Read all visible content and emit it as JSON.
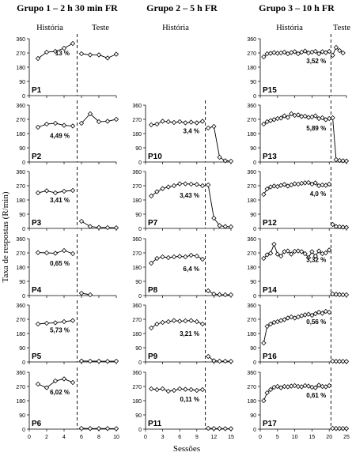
{
  "figure": {
    "group_titles": [
      "Grupo 1 – 2 h 30 min FR",
      "Grupo 2 – 5 h FR",
      "Grupo 3 – 10 h FR"
    ],
    "phase_labels": {
      "history": "História",
      "test": "Teste"
    },
    "ylabel": "Taxa de respostas (R/min)",
    "xlabel": "Sessões"
  },
  "chart_data": {
    "type": "line",
    "ylim": [
      0,
      360
    ],
    "yticks": [
      0,
      90,
      180,
      270,
      360
    ],
    "marker": "open-diamond",
    "groups": [
      {
        "title": "Grupo 1 – 2 h 30 min FR",
        "xlim": [
          0,
          10
        ],
        "xticks": [
          0,
          2,
          4,
          6,
          8,
          10
        ],
        "phase_boundary": 5.5,
        "panels": [
          {
            "name": "P1",
            "percent": "13 %",
            "history": {
              "x": [
                1,
                2,
                3,
                4,
                5
              ],
              "y": [
                235,
                275,
                280,
                300,
                330
              ]
            },
            "test": {
              "x": [
                6,
                7,
                8,
                9,
                10
              ],
              "y": [
                265,
                258,
                258,
                238,
                262
              ]
            }
          },
          {
            "name": "P2",
            "percent": "4,49 %",
            "history": {
              "x": [
                1,
                2,
                3,
                4,
                5
              ],
              "y": [
                220,
                240,
                245,
                232,
                228
              ]
            },
            "test": {
              "x": [
                6,
                7,
                8,
                9,
                10
              ],
              "y": [
                245,
                305,
                255,
                258,
                270
              ]
            }
          },
          {
            "name": "P3",
            "percent": "3,41 %",
            "history": {
              "x": [
                1,
                2,
                3,
                4,
                5
              ],
              "y": [
                225,
                238,
                225,
                235,
                240
              ]
            },
            "test": {
              "x": [
                6,
                7,
                8,
                9,
                10
              ],
              "y": [
                45,
                12,
                6,
                5,
                4
              ]
            }
          },
          {
            "name": "P4",
            "percent": "0,65 %",
            "history": {
              "x": [
                1,
                2,
                3,
                4,
                5
              ],
              "y": [
                272,
                270,
                268,
                285,
                265
              ]
            },
            "test": {
              "x": [
                6,
                7
              ],
              "y": [
                15,
                5
              ]
            }
          },
          {
            "name": "P5",
            "percent": "5,73 %",
            "history": {
              "x": [
                1,
                2,
                3,
                4,
                5
              ],
              "y": [
                240,
                245,
                248,
                255,
                262
              ]
            },
            "test": {
              "x": [
                6,
                7,
                8,
                9,
                10
              ],
              "y": [
                6,
                5,
                5,
                4,
                5
              ]
            }
          },
          {
            "name": "P6",
            "percent": "6,02 %",
            "history": {
              "x": [
                1,
                2,
                3,
                4,
                5
              ],
              "y": [
                285,
                262,
                305,
                318,
                295
              ]
            },
            "test": {
              "x": [
                6,
                7,
                8,
                9,
                10
              ],
              "y": [
                5,
                4,
                4,
                4,
                3
              ]
            }
          }
        ]
      },
      {
        "title": "Grupo 2 – 5 h FR",
        "xlim": [
          0,
          15
        ],
        "xticks": [
          0,
          3,
          6,
          9,
          12,
          15
        ],
        "phase_boundary": 10.5,
        "panels": [
          {
            "name": "P10",
            "percent": "3,4 %",
            "history": {
              "x": [
                1,
                2,
                3,
                4,
                5,
                6,
                7,
                8,
                9,
                10
              ],
              "y": [
                235,
                240,
                258,
                255,
                250,
                255,
                248,
                252,
                248,
                258
              ]
            },
            "test": {
              "x": [
                11,
                12,
                13,
                14,
                15
              ],
              "y": [
                215,
                225,
                30,
                8,
                5
              ]
            }
          },
          {
            "name": "P7",
            "percent": "3,43 %",
            "history": {
              "x": [
                1,
                2,
                3,
                4,
                5,
                6,
                7,
                8,
                9,
                10
              ],
              "y": [
                205,
                232,
                252,
                262,
                270,
                282,
                282,
                280,
                278,
                270
              ]
            },
            "test": {
              "x": [
                11,
                12,
                13,
                14,
                15
              ],
              "y": [
                275,
                65,
                18,
                12,
                10
              ]
            }
          },
          {
            "name": "P8",
            "percent": "6,4 %",
            "history": {
              "x": [
                1,
                2,
                3,
                4,
                5,
                6,
                7,
                8,
                9,
                10
              ],
              "y": [
                205,
                235,
                245,
                240,
                245,
                248,
                245,
                255,
                250,
                230
              ]
            },
            "test": {
              "x": [
                11,
                12,
                13,
                14,
                15
              ],
              "y": [
                30,
                10,
                6,
                5,
                5
              ]
            }
          },
          {
            "name": "P9",
            "percent": "3,21 %",
            "history": {
              "x": [
                1,
                2,
                3,
                4,
                5,
                6,
                7,
                8,
                9,
                10
              ],
              "y": [
                215,
                240,
                250,
                255,
                262,
                258,
                260,
                262,
                255,
                240
              ]
            },
            "test": {
              "x": [
                11,
                12,
                13,
                14,
                15
              ],
              "y": [
                35,
                8,
                5,
                5,
                4
              ]
            }
          },
          {
            "name": "P11",
            "percent": "0,11 %",
            "history": {
              "x": [
                1,
                2,
                3,
                4,
                5,
                6,
                7,
                8,
                9,
                10
              ],
              "y": [
                255,
                250,
                255,
                240,
                245,
                255,
                252,
                250,
                245,
                250
              ]
            },
            "test": {
              "x": [
                11,
                12,
                13,
                14,
                15
              ],
              "y": [
                5,
                4,
                4,
                3,
                3
              ]
            }
          }
        ]
      },
      {
        "title": "Grupo 3 – 10 h FR",
        "xlim": [
          0,
          25
        ],
        "xticks": [
          0,
          5,
          10,
          15,
          20,
          25
        ],
        "phase_boundary": 20.5,
        "panels": [
          {
            "name": "P15",
            "percent": "3,52 %",
            "history": {
              "x": [
                1,
                2,
                3,
                4,
                5,
                6,
                7,
                8,
                9,
                10,
                11,
                12,
                13,
                14,
                15,
                16,
                17,
                18,
                19,
                20
              ],
              "y": [
                245,
                265,
                268,
                272,
                268,
                270,
                275,
                265,
                272,
                278,
                265,
                275,
                282,
                270,
                275,
                280,
                265,
                278,
                272,
                280
              ]
            },
            "test": {
              "x": [
                21,
                22,
                23,
                24
              ],
              "y": [
                255,
                305,
                285,
                270
              ]
            }
          },
          {
            "name": "P13",
            "percent": "5,89 %",
            "history": {
              "x": [
                1,
                2,
                3,
                4,
                5,
                6,
                7,
                8,
                9,
                10,
                11,
                12,
                13,
                14,
                15,
                16,
                17,
                18,
                19,
                20
              ],
              "y": [
                240,
                255,
                262,
                268,
                275,
                278,
                292,
                282,
                305,
                295,
                298,
                288,
                290,
                282,
                285,
                292,
                275,
                280,
                268,
                275
              ]
            },
            "test": {
              "x": [
                21,
                22,
                23,
                24,
                25
              ],
              "y": [
                280,
                15,
                10,
                8,
                6
              ]
            }
          },
          {
            "name": "P12",
            "percent": "4,0 %",
            "history": {
              "x": [
                1,
                2,
                3,
                4,
                5,
                6,
                7,
                8,
                9,
                10,
                11,
                12,
                13,
                14,
                15,
                16,
                17,
                18,
                19,
                20
              ],
              "y": [
                215,
                250,
                262,
                268,
                265,
                272,
                278,
                268,
                275,
                282,
                280,
                285,
                288,
                290,
                280,
                288,
                270,
                275,
                272,
                280
              ]
            },
            "test": {
              "x": [
                21,
                22,
                23,
                24,
                25
              ],
              "y": [
                25,
                12,
                10,
                8,
                6
              ]
            }
          },
          {
            "name": "P14",
            "percent": "3,32 %",
            "history": {
              "x": [
                1,
                2,
                3,
                4,
                5,
                6,
                7,
                8,
                9,
                10,
                11,
                12,
                13,
                14,
                15,
                16,
                17,
                18,
                19,
                20
              ],
              "y": [
                235,
                258,
                268,
                325,
                262,
                250,
                278,
                282,
                262,
                280,
                282,
                278,
                265,
                240,
                278,
                250,
                282,
                265,
                270,
                288
              ]
            },
            "test": {
              "x": [
                21,
                22,
                23,
                24,
                25
              ],
              "y": [
                10,
                8,
                6,
                5,
                5
              ]
            }
          },
          {
            "name": "P16",
            "percent": "0,56 %",
            "history": {
              "x": [
                1,
                2,
                3,
                4,
                5,
                6,
                7,
                8,
                9,
                10,
                11,
                12,
                13,
                14,
                15,
                16,
                17,
                18,
                19,
                20
              ],
              "y": [
                120,
                225,
                240,
                250,
                255,
                262,
                268,
                278,
                285,
                278,
                285,
                292,
                298,
                302,
                295,
                305,
                315,
                308,
                320,
                315
              ]
            },
            "test": {
              "x": [
                21,
                22,
                23,
                24,
                25
              ],
              "y": [
                5,
                4,
                4,
                4,
                3
              ]
            }
          },
          {
            "name": "P17",
            "percent": "0,61 %",
            "history": {
              "x": [
                1,
                2,
                3,
                4,
                5,
                6,
                7,
                8,
                9,
                10,
                11,
                12,
                13,
                14,
                15,
                16,
                17,
                18,
                19,
                20
              ],
              "y": [
                180,
                230,
                250,
                265,
                270,
                262,
                270,
                268,
                272,
                275,
                270,
                268,
                275,
                272,
                265,
                262,
                278,
                270,
                268,
                275
              ]
            },
            "test": {
              "x": [
                21,
                22,
                23,
                24,
                25
              ],
              "y": [
                5,
                4,
                4,
                4,
                4
              ]
            }
          }
        ]
      }
    ]
  }
}
